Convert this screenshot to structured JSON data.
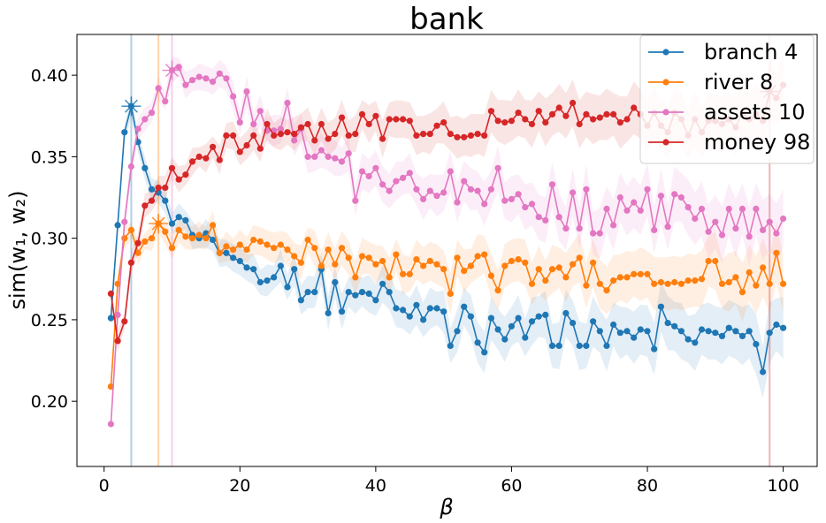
{
  "chart_data": {
    "type": "line",
    "title": "bank",
    "xlabel": "β",
    "ylabel": "sim(w₁, w₂)",
    "xlim": [
      -4,
      105
    ],
    "ylim": [
      0.16,
      0.425
    ],
    "xticks": [
      0,
      20,
      40,
      60,
      80,
      100
    ],
    "xtick_labels": [
      "0",
      "20",
      "40",
      "60",
      "80",
      "100"
    ],
    "yticks": [
      0.2,
      0.25,
      0.3,
      0.35,
      0.4
    ],
    "ytick_labels": [
      "0.20",
      "0.25",
      "0.30",
      "0.35",
      "0.40"
    ],
    "grid": false,
    "legend_position": "top-right",
    "x": [
      1,
      2,
      3,
      4,
      5,
      6,
      7,
      8,
      9,
      10,
      11,
      12,
      13,
      14,
      15,
      16,
      17,
      18,
      19,
      20,
      21,
      22,
      23,
      24,
      25,
      26,
      27,
      28,
      29,
      30,
      31,
      32,
      33,
      34,
      35,
      36,
      37,
      38,
      39,
      40,
      41,
      42,
      43,
      44,
      45,
      46,
      47,
      48,
      49,
      50,
      51,
      52,
      53,
      54,
      55,
      56,
      57,
      58,
      59,
      60,
      61,
      62,
      63,
      64,
      65,
      66,
      67,
      68,
      69,
      70,
      71,
      72,
      73,
      74,
      75,
      76,
      77,
      78,
      79,
      80,
      81,
      82,
      83,
      84,
      85,
      86,
      87,
      88,
      89,
      90,
      91,
      92,
      93,
      94,
      95,
      96,
      97,
      98,
      99,
      100
    ],
    "series": [
      {
        "name": "branch 4",
        "color": "#1f77b4",
        "peak_x": 4,
        "values": [
          0.251,
          0.308,
          0.365,
          0.381,
          0.359,
          0.343,
          0.33,
          0.328,
          0.323,
          0.309,
          0.313,
          0.311,
          0.302,
          0.3,
          0.303,
          0.299,
          0.291,
          0.291,
          0.288,
          0.286,
          0.282,
          0.281,
          0.273,
          0.274,
          0.276,
          0.283,
          0.27,
          0.281,
          0.262,
          0.267,
          0.267,
          0.281,
          0.254,
          0.273,
          0.255,
          0.267,
          0.265,
          0.267,
          0.266,
          0.262,
          0.272,
          0.267,
          0.257,
          0.256,
          0.252,
          0.259,
          0.25,
          0.257,
          0.257,
          0.255,
          0.234,
          0.243,
          0.258,
          0.252,
          0.236,
          0.23,
          0.251,
          0.244,
          0.238,
          0.246,
          0.251,
          0.239,
          0.249,
          0.252,
          0.253,
          0.234,
          0.234,
          0.254,
          0.248,
          0.234,
          0.234,
          0.249,
          0.243,
          0.234,
          0.247,
          0.242,
          0.243,
          0.239,
          0.244,
          0.243,
          0.232,
          0.258,
          0.248,
          0.246,
          0.243,
          0.238,
          0.236,
          0.244,
          0.243,
          0.242,
          0.24,
          0.245,
          0.243,
          0.24,
          0.243,
          0.235,
          0.218,
          0.242,
          0.247,
          0.245
        ]
      },
      {
        "name": "river 8",
        "color": "#ff7f0e",
        "peak_x": 8,
        "values": [
          0.209,
          0.272,
          0.3,
          0.305,
          0.291,
          0.298,
          0.3,
          0.309,
          0.304,
          0.294,
          0.305,
          0.301,
          0.3,
          0.302,
          0.3,
          0.308,
          0.291,
          0.295,
          0.293,
          0.296,
          0.293,
          0.299,
          0.298,
          0.296,
          0.294,
          0.296,
          0.293,
          0.289,
          0.285,
          0.299,
          0.294,
          0.283,
          0.293,
          0.284,
          0.294,
          0.288,
          0.276,
          0.289,
          0.288,
          0.284,
          0.286,
          0.276,
          0.29,
          0.278,
          0.278,
          0.287,
          0.283,
          0.286,
          0.284,
          0.281,
          0.266,
          0.288,
          0.28,
          0.283,
          0.289,
          0.29,
          0.277,
          0.268,
          0.283,
          0.286,
          0.287,
          0.285,
          0.272,
          0.281,
          0.274,
          0.281,
          0.282,
          0.276,
          0.284,
          0.288,
          0.271,
          0.285,
          0.272,
          0.268,
          0.274,
          0.276,
          0.276,
          0.278,
          0.278,
          0.278,
          0.272,
          0.273,
          0.272,
          0.273,
          0.272,
          0.274,
          0.274,
          0.275,
          0.286,
          0.286,
          0.272,
          0.273,
          0.276,
          0.267,
          0.279,
          0.271,
          0.282,
          0.272,
          0.291,
          0.272
        ]
      },
      {
        "name": "assets 10",
        "color": "#e377c2",
        "peak_x": 10,
        "values": [
          0.186,
          0.253,
          0.31,
          0.344,
          0.367,
          0.373,
          0.377,
          0.392,
          0.384,
          0.403,
          0.405,
          0.394,
          0.397,
          0.399,
          0.398,
          0.396,
          0.401,
          0.398,
          0.387,
          0.371,
          0.39,
          0.37,
          0.378,
          0.366,
          0.366,
          0.367,
          0.383,
          0.36,
          0.367,
          0.35,
          0.35,
          0.354,
          0.35,
          0.349,
          0.347,
          0.352,
          0.323,
          0.341,
          0.338,
          0.343,
          0.333,
          0.329,
          0.335,
          0.337,
          0.34,
          0.33,
          0.324,
          0.329,
          0.326,
          0.328,
          0.341,
          0.322,
          0.335,
          0.33,
          0.329,
          0.321,
          0.33,
          0.343,
          0.323,
          0.324,
          0.327,
          0.319,
          0.321,
          0.313,
          0.311,
          0.333,
          0.313,
          0.306,
          0.328,
          0.306,
          0.33,
          0.303,
          0.303,
          0.318,
          0.308,
          0.325,
          0.317,
          0.322,
          0.317,
          0.33,
          0.305,
          0.326,
          0.307,
          0.327,
          0.325,
          0.319,
          0.312,
          0.318,
          0.304,
          0.31,
          0.302,
          0.318,
          0.306,
          0.318,
          0.301,
          0.318,
          0.305,
          0.31,
          0.303,
          0.312
        ]
      },
      {
        "name": "money 98",
        "color": "#d62728",
        "peak_x": 98,
        "values": [
          0.266,
          0.237,
          0.249,
          0.285,
          0.297,
          0.32,
          0.323,
          0.331,
          0.331,
          0.343,
          0.336,
          0.339,
          0.347,
          0.35,
          0.349,
          0.356,
          0.348,
          0.363,
          0.363,
          0.353,
          0.357,
          0.363,
          0.355,
          0.37,
          0.363,
          0.364,
          0.365,
          0.364,
          0.368,
          0.37,
          0.36,
          0.37,
          0.361,
          0.364,
          0.374,
          0.363,
          0.364,
          0.376,
          0.37,
          0.375,
          0.361,
          0.373,
          0.373,
          0.373,
          0.372,
          0.363,
          0.364,
          0.364,
          0.369,
          0.371,
          0.364,
          0.362,
          0.362,
          0.363,
          0.364,
          0.363,
          0.378,
          0.372,
          0.371,
          0.372,
          0.377,
          0.373,
          0.37,
          0.378,
          0.371,
          0.376,
          0.38,
          0.375,
          0.383,
          0.37,
          0.376,
          0.373,
          0.374,
          0.376,
          0.376,
          0.371,
          0.373,
          0.38,
          0.376,
          0.369,
          0.377,
          0.369,
          0.365,
          0.377,
          0.373,
          0.363,
          0.373,
          0.365,
          0.372,
          0.372,
          0.37,
          0.373,
          0.368,
          0.377,
          0.373,
          0.376,
          0.372,
          0.39,
          0.386,
          0.394
        ]
      }
    ]
  }
}
